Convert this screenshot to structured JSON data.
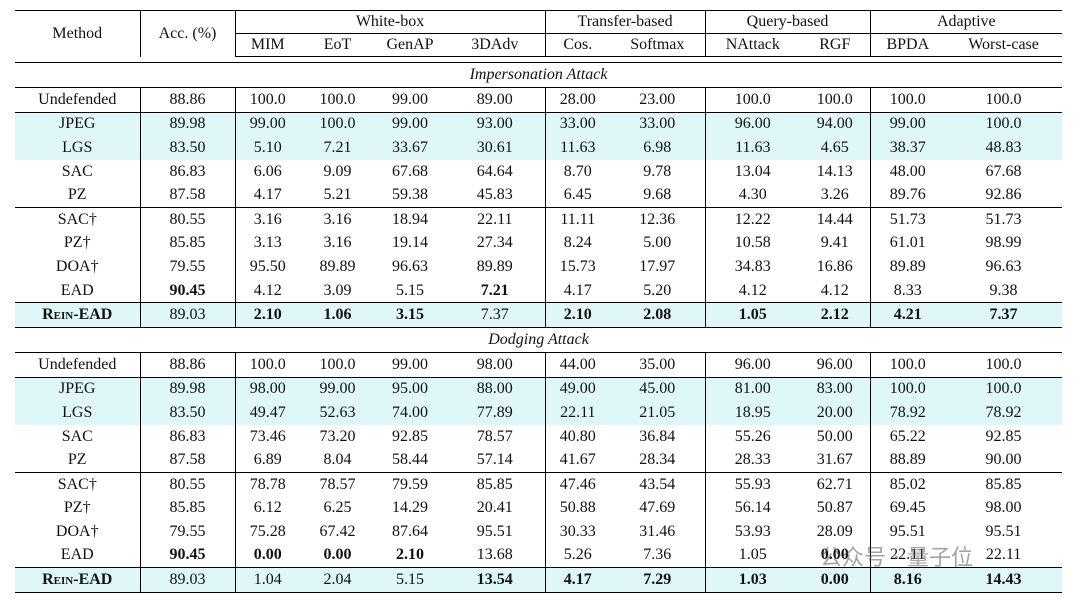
{
  "header": {
    "method": "Method",
    "acc": "Acc. (%)",
    "groups": [
      {
        "name": "White-box",
        "columns": [
          "MIM",
          "EoT",
          "GenAP",
          "3DAdv"
        ]
      },
      {
        "name": "Transfer-based",
        "columns": [
          "Cos.",
          "Softmax"
        ]
      },
      {
        "name": "Query-based",
        "columns": [
          "NAttack",
          "RGF"
        ]
      },
      {
        "name": "Adaptive",
        "columns": [
          "BPDA",
          "Worst-case"
        ]
      }
    ]
  },
  "sections": [
    {
      "title": "Impersonation Attack",
      "rows": [
        {
          "cells": [
            "Undefended",
            "88.86",
            "100.0",
            "100.0",
            "99.00",
            "89.00",
            "28.00",
            "23.00",
            "100.0",
            "100.0",
            "100.0",
            "100.0"
          ],
          "bold": [],
          "highlight": false
        },
        {
          "cells": [
            "JPEG",
            "89.98",
            "99.00",
            "100.0",
            "99.00",
            "93.00",
            "33.00",
            "33.00",
            "96.00",
            "94.00",
            "99.00",
            "100.0"
          ],
          "bold": [],
          "highlight": true
        },
        {
          "cells": [
            "LGS",
            "83.50",
            "5.10",
            "7.21",
            "33.67",
            "30.61",
            "11.63",
            "6.98",
            "11.63",
            "4.65",
            "38.37",
            "48.83"
          ],
          "bold": [],
          "highlight": true
        },
        {
          "cells": [
            "SAC",
            "86.83",
            "6.06",
            "9.09",
            "67.68",
            "64.64",
            "8.70",
            "9.78",
            "13.04",
            "14.13",
            "48.00",
            "67.68"
          ],
          "bold": [],
          "highlight": false
        },
        {
          "cells": [
            "PZ",
            "87.58",
            "4.17",
            "5.21",
            "59.38",
            "45.83",
            "6.45",
            "9.68",
            "4.30",
            "3.26",
            "89.76",
            "92.86"
          ],
          "bold": [],
          "highlight": false
        },
        {
          "cells": [
            "SAC†",
            "80.55",
            "3.16",
            "3.16",
            "18.94",
            "22.11",
            "11.11",
            "12.36",
            "12.22",
            "14.44",
            "51.73",
            "51.73"
          ],
          "bold": [],
          "highlight": false
        },
        {
          "cells": [
            "PZ†",
            "85.85",
            "3.13",
            "3.16",
            "19.14",
            "27.34",
            "8.24",
            "5.00",
            "10.58",
            "9.41",
            "61.01",
            "98.99"
          ],
          "bold": [],
          "highlight": false
        },
        {
          "cells": [
            "DOA†",
            "79.55",
            "95.50",
            "89.89",
            "96.63",
            "89.89",
            "15.73",
            "17.97",
            "34.83",
            "16.86",
            "89.89",
            "96.63"
          ],
          "bold": [],
          "highlight": false
        },
        {
          "cells": [
            "EAD",
            "90.45",
            "4.12",
            "3.09",
            "5.15",
            "7.21",
            "4.17",
            "5.20",
            "4.12",
            "4.12",
            "8.33",
            "9.38"
          ],
          "bold": [
            1,
            5
          ],
          "highlight": false
        },
        {
          "cells": [
            "Rein-EAD",
            "89.03",
            "2.10",
            "1.06",
            "3.15",
            "7.37",
            "2.10",
            "2.08",
            "1.05",
            "2.12",
            "4.21",
            "7.37"
          ],
          "bold": [
            0,
            2,
            3,
            4,
            6,
            7,
            8,
            9,
            10,
            11
          ],
          "highlight": true
        }
      ]
    },
    {
      "title": "Dodging Attack",
      "rows": [
        {
          "cells": [
            "Undefended",
            "88.86",
            "100.0",
            "100.0",
            "99.00",
            "98.00",
            "44.00",
            "35.00",
            "96.00",
            "96.00",
            "100.0",
            "100.0"
          ],
          "bold": [],
          "highlight": false
        },
        {
          "cells": [
            "JPEG",
            "89.98",
            "98.00",
            "99.00",
            "95.00",
            "88.00",
            "49.00",
            "45.00",
            "81.00",
            "83.00",
            "100.0",
            "100.0"
          ],
          "bold": [],
          "highlight": true
        },
        {
          "cells": [
            "LGS",
            "83.50",
            "49.47",
            "52.63",
            "74.00",
            "77.89",
            "22.11",
            "21.05",
            "18.95",
            "20.00",
            "78.92",
            "78.92"
          ],
          "bold": [],
          "highlight": true
        },
        {
          "cells": [
            "SAC",
            "86.83",
            "73.46",
            "73.20",
            "92.85",
            "78.57",
            "40.80",
            "36.84",
            "55.26",
            "50.00",
            "65.22",
            "92.85"
          ],
          "bold": [],
          "highlight": false
        },
        {
          "cells": [
            "PZ",
            "87.58",
            "6.89",
            "8.04",
            "58.44",
            "57.14",
            "41.67",
            "28.34",
            "28.33",
            "31.67",
            "88.89",
            "90.00"
          ],
          "bold": [],
          "highlight": false
        },
        {
          "cells": [
            "SAC†",
            "80.55",
            "78.78",
            "78.57",
            "79.59",
            "85.85",
            "47.46",
            "43.54",
            "55.93",
            "62.71",
            "85.02",
            "85.85"
          ],
          "bold": [],
          "highlight": false
        },
        {
          "cells": [
            "PZ†",
            "85.85",
            "6.12",
            "6.25",
            "14.29",
            "20.41",
            "50.88",
            "47.69",
            "56.14",
            "50.87",
            "69.45",
            "98.00"
          ],
          "bold": [],
          "highlight": false
        },
        {
          "cells": [
            "DOA†",
            "79.55",
            "75.28",
            "67.42",
            "87.64",
            "95.51",
            "30.33",
            "31.46",
            "53.93",
            "28.09",
            "95.51",
            "95.51"
          ],
          "bold": [],
          "highlight": false
        },
        {
          "cells": [
            "EAD",
            "90.45",
            "0.00",
            "0.00",
            "2.10",
            "13.68",
            "5.26",
            "7.36",
            "1.05",
            "0.00",
            "22.11",
            "22.11"
          ],
          "bold": [
            1,
            2,
            3,
            4,
            9
          ],
          "highlight": false
        },
        {
          "cells": [
            "Rein-EAD",
            "89.03",
            "1.04",
            "2.04",
            "5.15",
            "13.54",
            "4.17",
            "7.29",
            "1.03",
            "0.00",
            "8.16",
            "14.43"
          ],
          "bold": [
            0,
            5,
            6,
            7,
            8,
            9,
            10,
            11
          ],
          "highlight": true
        }
      ]
    }
  ],
  "watermark": "公众号 · 量子位"
}
